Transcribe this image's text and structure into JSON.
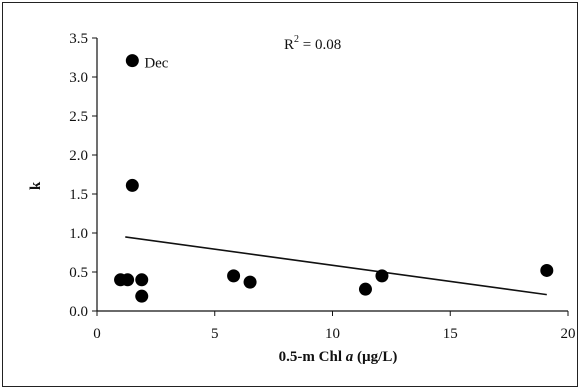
{
  "chart_data": {
    "type": "scatter",
    "xlabel_parts": [
      "0.5-m Chl ",
      "a",
      " (µg/L)"
    ],
    "ylabel": "k",
    "xlim": [
      0,
      20
    ],
    "ylim": [
      0,
      3.5
    ],
    "x_ticks": [
      0,
      5,
      10,
      15,
      20
    ],
    "x_tick_labels": [
      "0",
      "5",
      "10",
      "15",
      "20"
    ],
    "y_ticks": [
      0,
      0.5,
      1.0,
      1.5,
      2.0,
      2.5,
      3.0,
      3.5
    ],
    "y_tick_labels": [
      "0.0",
      "0.5",
      "1.0",
      "1.5",
      "2.0",
      "2.5",
      "3.0",
      "3.5"
    ],
    "grid": false,
    "legend": "none",
    "points": [
      {
        "x": 1.5,
        "y": 3.21,
        "label": "Dec"
      },
      {
        "x": 1.5,
        "y": 1.61
      },
      {
        "x": 1.0,
        "y": 0.4
      },
      {
        "x": 1.3,
        "y": 0.4
      },
      {
        "x": 1.9,
        "y": 0.4
      },
      {
        "x": 1.9,
        "y": 0.19
      },
      {
        "x": 5.8,
        "y": 0.45
      },
      {
        "x": 6.5,
        "y": 0.37
      },
      {
        "x": 11.4,
        "y": 0.28
      },
      {
        "x": 12.1,
        "y": 0.45
      },
      {
        "x": 19.1,
        "y": 0.52
      }
    ],
    "trendline": {
      "x": [
        1.2,
        19.1
      ],
      "y": [
        0.95,
        0.21
      ]
    },
    "annotation": {
      "r2_prefix": "R",
      "r2_sup": "2",
      "r2_value": " = 0.08"
    },
    "point_color": "#000000"
  }
}
